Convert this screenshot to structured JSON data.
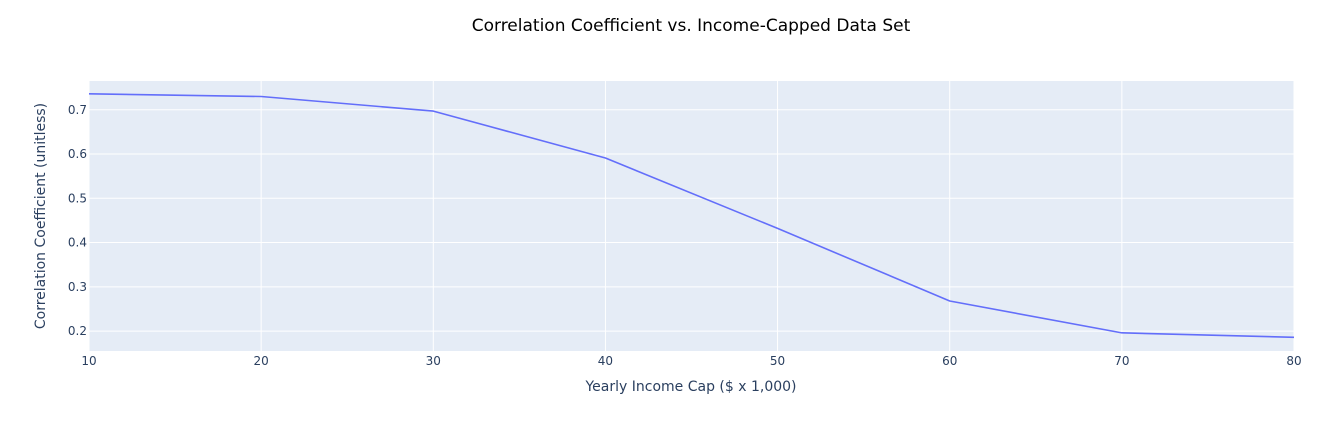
{
  "chart_data": {
    "type": "line",
    "title": "Correlation Coefficient vs. Income-Capped Data Set",
    "xlabel": "Yearly Income Cap ($ x 1,000)",
    "ylabel": "Correlation Coefficient (unitless)",
    "x": [
      10,
      20,
      30,
      40,
      50,
      60,
      70,
      80
    ],
    "xlim": [
      10,
      80
    ],
    "ylim": [
      0.155,
      0.765
    ],
    "xticks": [
      10,
      20,
      30,
      40,
      50,
      60,
      70,
      80
    ],
    "yticks": [
      0.2,
      0.3,
      0.4,
      0.5,
      0.6,
      0.7
    ],
    "grid": true,
    "series": [
      {
        "values": [
          0.736,
          0.73,
          0.697,
          0.591,
          0.432,
          0.268,
          0.196,
          0.186
        ]
      }
    ]
  },
  "colors": {
    "plot_background": "#e5ecf6",
    "grid": "#ffffff",
    "line": "#636efa",
    "text": "#2a3f5f"
  }
}
